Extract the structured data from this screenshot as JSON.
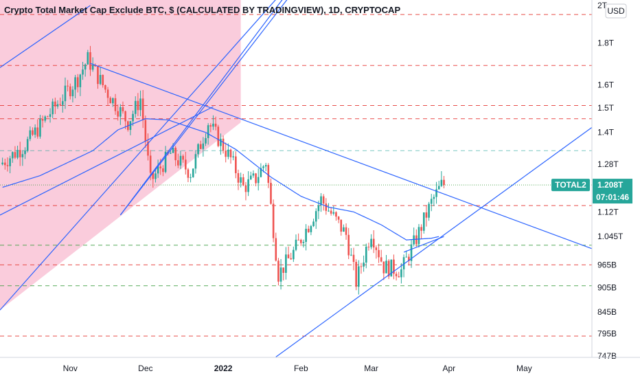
{
  "chart_data": {
    "type": "candlestick",
    "title": "Crypto Total Market Cap Exclude BTC, $ (CALCULATED BY TRADINGVIEW), 1D, CRYPTOCAP",
    "currency_button": "USD",
    "y_scale": "log",
    "y_ticks": [
      {
        "label": "2T",
        "value": 2000
      },
      {
        "label": "1.8T",
        "value": 1800
      },
      {
        "label": "1.6T",
        "value": 1600
      },
      {
        "label": "1.5T",
        "value": 1500
      },
      {
        "label": "1.4T",
        "value": 1400
      },
      {
        "label": "1.28T",
        "value": 1280
      },
      {
        "label": "1.12T",
        "value": 1120
      },
      {
        "label": "1.045T",
        "value": 1045
      },
      {
        "label": "965B",
        "value": 965
      },
      {
        "label": "905B",
        "value": 905
      },
      {
        "label": "845B",
        "value": 845
      },
      {
        "label": "795B",
        "value": 795
      },
      {
        "label": "747B",
        "value": 747
      }
    ],
    "x_ticks": [
      {
        "label": "Nov",
        "date": "2021-11-01"
      },
      {
        "label": "Dec",
        "date": "2021-12-01"
      },
      {
        "label": "2022",
        "date": "2022-01-01",
        "bold": true
      },
      {
        "label": "Feb",
        "date": "2022-02-01"
      },
      {
        "label": "Mar",
        "date": "2022-03-01"
      },
      {
        "label": "Apr",
        "date": "2022-04-01"
      },
      {
        "label": "May",
        "date": "2022-05-01"
      }
    ],
    "x_range": [
      "2021-10-04",
      "2022-05-28"
    ],
    "symbol_label": "TOTAL2",
    "last_price_label": "1.208T",
    "last_price": 1208,
    "countdown_label": "07:01:46",
    "colors": {
      "up": "#26a69a",
      "down": "#ef5350",
      "ma": "#2962ff",
      "trend": "#2962ff",
      "zone": "#f8bbd0",
      "red_level": "#e53935",
      "green_level": "#43a047",
      "teal_level": "#26a69a",
      "tag": "#26a69a"
    },
    "moving_average_key_points": [
      {
        "date": "2021-10-05",
        "value": 1200
      },
      {
        "date": "2021-10-20",
        "value": 1240
      },
      {
        "date": "2021-11-10",
        "value": 1330
      },
      {
        "date": "2021-11-20",
        "value": 1410
      },
      {
        "date": "2021-12-01",
        "value": 1455
      },
      {
        "date": "2021-12-10",
        "value": 1450
      },
      {
        "date": "2021-12-25",
        "value": 1400
      },
      {
        "date": "2022-01-06",
        "value": 1335
      },
      {
        "date": "2022-01-20",
        "value": 1235
      },
      {
        "date": "2022-02-01",
        "value": 1170
      },
      {
        "date": "2022-02-12",
        "value": 1135
      },
      {
        "date": "2022-02-22",
        "value": 1120
      },
      {
        "date": "2022-03-05",
        "value": 1080
      },
      {
        "date": "2022-03-15",
        "value": 1035
      },
      {
        "date": "2022-03-25",
        "value": 1040
      },
      {
        "date": "2022-03-28",
        "value": 1045
      }
    ],
    "price_path_key_points": [
      {
        "date": "2021-10-05",
        "value": 1280
      },
      {
        "date": "2021-10-15",
        "value": 1350
      },
      {
        "date": "2021-10-25",
        "value": 1480
      },
      {
        "date": "2021-11-05",
        "value": 1630
      },
      {
        "date": "2021-11-09",
        "value": 1720
      },
      {
        "date": "2021-11-16",
        "value": 1580
      },
      {
        "date": "2021-11-25",
        "value": 1440
      },
      {
        "date": "2021-11-30",
        "value": 1540
      },
      {
        "date": "2021-12-04",
        "value": 1220
      },
      {
        "date": "2021-12-12",
        "value": 1320
      },
      {
        "date": "2021-12-20",
        "value": 1250
      },
      {
        "date": "2021-12-27",
        "value": 1440
      },
      {
        "date": "2022-01-05",
        "value": 1300
      },
      {
        "date": "2022-01-10",
        "value": 1200
      },
      {
        "date": "2022-01-15",
        "value": 1230
      },
      {
        "date": "2022-01-19",
        "value": 1290
      },
      {
        "date": "2022-01-24",
        "value": 940
      },
      {
        "date": "2022-01-30",
        "value": 1000
      },
      {
        "date": "2022-02-05",
        "value": 1080
      },
      {
        "date": "2022-02-10",
        "value": 1160
      },
      {
        "date": "2022-02-20",
        "value": 1050
      },
      {
        "date": "2022-02-24",
        "value": 920
      },
      {
        "date": "2022-03-02",
        "value": 1060
      },
      {
        "date": "2022-03-07",
        "value": 960
      },
      {
        "date": "2022-03-14",
        "value": 950
      },
      {
        "date": "2022-03-20",
        "value": 1040
      },
      {
        "date": "2022-03-26",
        "value": 1150
      },
      {
        "date": "2022-03-30",
        "value": 1208
      }
    ],
    "horizontal_levels": [
      {
        "value": 1950,
        "style": "red-dashed"
      },
      {
        "value": 1690,
        "style": "red-dashed"
      },
      {
        "value": 1510,
        "style": "red-dashed"
      },
      {
        "value": 1455,
        "style": "red-dashed"
      },
      {
        "value": 1330,
        "style": "teal-dashed"
      },
      {
        "value": 1208,
        "style": "green-dotted"
      },
      {
        "value": 1140,
        "style": "red-dashed"
      },
      {
        "value": 1020,
        "style": "green-dashed"
      },
      {
        "value": 965,
        "style": "red-dashed"
      },
      {
        "value": 910,
        "style": "green-dashed"
      },
      {
        "value": 790,
        "style": "red-dashed"
      }
    ],
    "trend_lines": [
      {
        "from": {
          "date": "2021-11-09",
          "value": 1700
        },
        "to": {
          "date": "2022-05-28",
          "value": 1010
        }
      },
      {
        "from": {
          "date": "2021-10-04",
          "value": 850
        },
        "to": {
          "date": "2022-01-26",
          "value": 2100
        }
      },
      {
        "from": {
          "date": "2021-11-21",
          "value": 1110
        },
        "to": {
          "date": "2022-01-28",
          "value": 2100
        }
      },
      {
        "from": {
          "date": "2021-11-21",
          "value": 1110
        },
        "to": {
          "date": "2022-01-30",
          "value": 2100
        }
      },
      {
        "from": {
          "date": "2022-01-22",
          "value": 745
        },
        "to": {
          "date": "2022-05-28",
          "value": 1420
        }
      },
      {
        "from": {
          "date": "2022-03-14",
          "value": 1000
        },
        "to": {
          "date": "2022-03-30",
          "value": 1045
        }
      },
      {
        "from": {
          "date": "2021-10-04",
          "value": 1110
        },
        "to": {
          "date": "2021-12-28",
          "value": 1505
        }
      },
      {
        "from": {
          "date": "2021-10-04",
          "value": 1680
        },
        "to": {
          "date": "2021-11-09",
          "value": 2000
        }
      }
    ]
  }
}
